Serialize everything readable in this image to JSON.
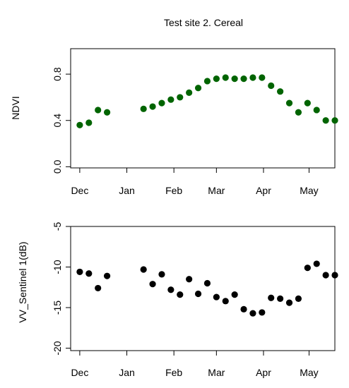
{
  "figure": {
    "title": "Test site 2. Cereal"
  },
  "chart_data": [
    {
      "type": "scatter",
      "title": "Test site 2. Cereal",
      "xlabel": "",
      "ylabel": "NDVI",
      "x_tick_labels": [
        "Dec",
        "Jan",
        "Feb",
        "Mar",
        "Apr",
        "May"
      ],
      "x_tick_days": [
        0,
        31,
        62,
        90,
        121,
        151
      ],
      "y_ticks": [
        0.0,
        0.4,
        0.8
      ],
      "y_tick_labels": [
        "0.0",
        "0.4",
        "0.8"
      ],
      "ylim": [
        -0.01,
        1.02
      ],
      "xlim": [
        -6,
        168
      ],
      "grid": false,
      "point_color": "#006400",
      "series": [
        {
          "days": [
            0,
            6,
            12,
            18,
            42,
            48,
            54,
            60,
            66,
            72,
            78,
            84,
            90,
            96,
            102,
            108,
            114,
            120,
            126,
            132,
            138,
            144,
            150,
            156,
            162,
            168
          ],
          "values": [
            0.36,
            0.38,
            0.49,
            0.47,
            0.5,
            0.52,
            0.55,
            0.58,
            0.6,
            0.64,
            0.68,
            0.74,
            0.76,
            0.77,
            0.76,
            0.76,
            0.77,
            0.77,
            0.7,
            0.65,
            0.55,
            0.47,
            0.55,
            0.49,
            0.4,
            0.4
          ]
        }
      ]
    },
    {
      "type": "scatter",
      "title": "",
      "xlabel": "",
      "ylabel": "VV_Sentinel 1(dB)",
      "x_tick_labels": [
        "Dec",
        "Jan",
        "Feb",
        "Mar",
        "Apr",
        "May"
      ],
      "x_tick_days": [
        0,
        31,
        62,
        90,
        121,
        151
      ],
      "y_ticks": [
        -20,
        -15,
        -10,
        -5
      ],
      "y_tick_labels": [
        "-20",
        "-15",
        "-10",
        "-5"
      ],
      "ylim": [
        -20.3,
        -5.0
      ],
      "xlim": [
        -6,
        168
      ],
      "grid": false,
      "point_color": "#000000",
      "series": [
        {
          "days": [
            0,
            6,
            12,
            18,
            42,
            48,
            54,
            60,
            66,
            72,
            78,
            84,
            90,
            96,
            102,
            108,
            114,
            120,
            126,
            132,
            138,
            144,
            150,
            156,
            162,
            168
          ],
          "values": [
            -10.6,
            -10.8,
            -12.6,
            -11.1,
            -10.3,
            -12.1,
            -10.9,
            -12.8,
            -13.4,
            -11.5,
            -13.3,
            -12.0,
            -13.7,
            -14.2,
            -13.4,
            -15.2,
            -15.7,
            -15.6,
            -13.8,
            -13.9,
            -14.4,
            -13.9,
            -10.1,
            -9.6,
            -11.0,
            -11.0
          ]
        }
      ]
    }
  ]
}
